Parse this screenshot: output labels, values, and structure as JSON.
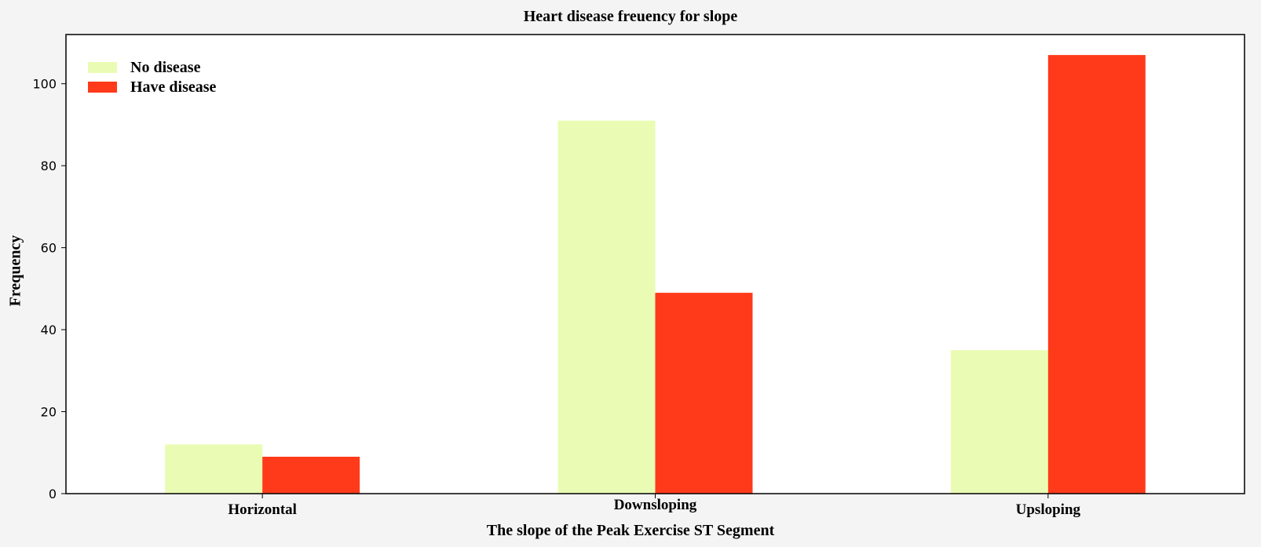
{
  "chart_data": {
    "type": "bar",
    "title": "Heart disease freuency for slope",
    "xlabel": "The slope of the Peak Exercise ST Segment",
    "ylabel": "Frequency",
    "categories": [
      "Horizontal",
      "Downsloping",
      "Upsloping"
    ],
    "series": [
      {
        "name": "No disease",
        "color": "#eafcb3",
        "values": [
          12,
          91,
          35
        ]
      },
      {
        "name": "Have disease",
        "color": "#ff3a1a",
        "values": [
          9,
          49,
          107
        ]
      }
    ],
    "ylim": [
      0,
      112
    ],
    "yticks": [
      "0",
      "20",
      "40",
      "60",
      "80",
      "100"
    ],
    "grid": false,
    "legend_position": "top-left"
  }
}
